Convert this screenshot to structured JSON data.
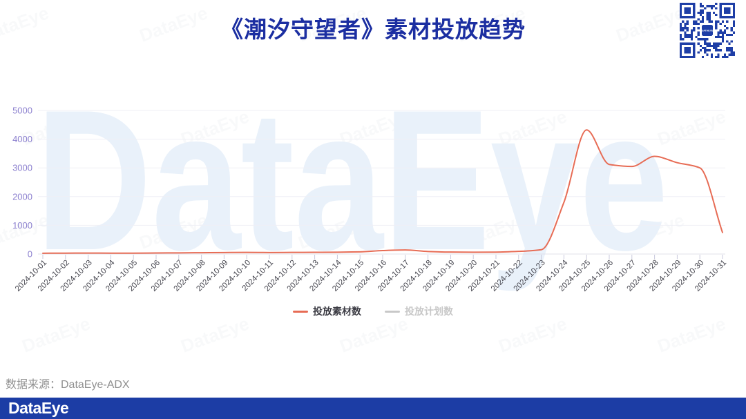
{
  "title": "《潮汐守望者》素材投放趋势",
  "watermark": {
    "text": "DataEye"
  },
  "qr": {
    "center_label": "DATAEYE"
  },
  "legend": {
    "items": [
      {
        "label": "投放素材数",
        "color": "#E76C55",
        "active": true
      },
      {
        "label": "投放计划数",
        "color": "#C8C8C8",
        "active": false
      }
    ]
  },
  "source_note": "数据来源：DataEye-ADX",
  "footer": {
    "logo": "DataEye"
  },
  "colors": {
    "title_blue": "#1B2EA1",
    "footer_blue": "#1C3DA5",
    "qr_blue": "#1E3EA6",
    "line_coral": "#E76C55",
    "inactive_gray": "#C8C8C8",
    "y_label_purple": "#8C80CF",
    "x_label_gray": "#45454E",
    "grid_gray": "#EFEFF5",
    "watermark_blue": "#E9F1FA"
  },
  "chart_data": {
    "type": "line",
    "smooth": true,
    "title": "《潮汐守望者》素材投放趋势",
    "x": [
      "2024-10-01",
      "2024-10-02",
      "2024-10-03",
      "2024-10-04",
      "2024-10-05",
      "2024-10-06",
      "2024-10-07",
      "2024-10-08",
      "2024-10-09",
      "2024-10-10",
      "2024-10-11",
      "2024-10-12",
      "2024-10-13",
      "2024-10-14",
      "2024-10-15",
      "2024-10-16",
      "2024-10-17",
      "2024-10-18",
      "2024-10-19",
      "2024-10-20",
      "2024-10-21",
      "2024-10-22",
      "2024-10-23",
      "2024-10-24",
      "2024-10-25",
      "2024-10-26",
      "2024-10-27",
      "2024-10-28",
      "2024-10-29",
      "2024-10-30",
      "2024-10-31"
    ],
    "series": [
      {
        "name": "投放素材数",
        "color": "#E76C55",
        "hidden": false,
        "values": [
          28,
          30,
          34,
          30,
          30,
          36,
          40,
          46,
          52,
          56,
          52,
          56,
          60,
          64,
          76,
          120,
          140,
          88,
          68,
          62,
          66,
          92,
          150,
          1800,
          4320,
          3120,
          3050,
          3400,
          3180,
          3000,
          750
        ]
      },
      {
        "name": "投放计划数",
        "color": "#C8C8C8",
        "hidden": true,
        "values": []
      }
    ],
    "ylim": [
      0,
      5000
    ],
    "yticks": [
      0,
      1000,
      2000,
      3000,
      4000,
      5000
    ],
    "grid": true,
    "legend_position": "bottom"
  }
}
